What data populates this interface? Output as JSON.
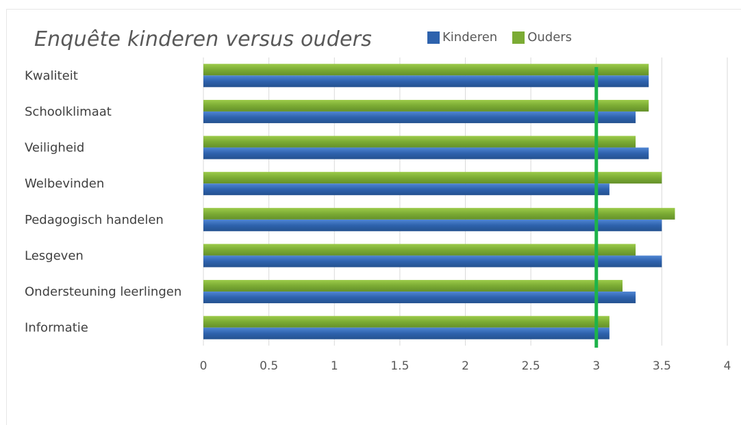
{
  "chart_data": {
    "type": "bar",
    "orientation": "horizontal",
    "title": "Enquête kinderen versus ouders",
    "categories": [
      "Kwaliteit",
      "Schoolklimaat",
      "Veiligheid",
      "Welbevinden",
      "Pedagogisch handelen",
      "Lesgeven",
      "Ondersteuning leerlingen",
      "Informatie"
    ],
    "series": [
      {
        "name": "Kinderen",
        "color": "#2e62ad",
        "values": [
          3.4,
          3.3,
          3.4,
          3.1,
          3.5,
          3.5,
          3.3,
          3.1
        ]
      },
      {
        "name": "Ouders",
        "color": "#7bab34",
        "values": [
          3.4,
          3.4,
          3.3,
          3.5,
          3.6,
          3.3,
          3.2,
          3.1
        ]
      }
    ],
    "xlim": [
      0,
      4
    ],
    "xticks": [
      "0",
      "0.5",
      "1",
      "1.5",
      "2",
      "2.5",
      "3",
      "3.5",
      "4"
    ],
    "reference_line": {
      "value": 3,
      "color": "#1db34a"
    },
    "grid": true,
    "legend_position": "top"
  }
}
